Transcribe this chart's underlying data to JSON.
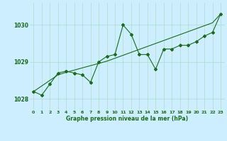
{
  "x": [
    0,
    1,
    2,
    3,
    4,
    5,
    6,
    7,
    8,
    9,
    10,
    11,
    12,
    13,
    14,
    15,
    16,
    17,
    18,
    19,
    20,
    21,
    22,
    23
  ],
  "pressure": [
    1028.2,
    1028.1,
    1028.4,
    1028.7,
    1028.75,
    1028.7,
    1028.65,
    1028.45,
    1029.0,
    1029.15,
    1029.2,
    1030.0,
    1029.75,
    1029.2,
    1029.2,
    1028.8,
    1029.35,
    1029.35,
    1029.45,
    1029.45,
    1029.55,
    1029.7,
    1029.8,
    1030.3
  ],
  "trend": [
    1028.2,
    1028.35,
    1028.5,
    1028.65,
    1028.72,
    1028.78,
    1028.84,
    1028.9,
    1028.96,
    1029.02,
    1029.1,
    1029.18,
    1029.26,
    1029.34,
    1029.42,
    1029.5,
    1029.58,
    1029.66,
    1029.74,
    1029.82,
    1029.9,
    1029.98,
    1030.06,
    1030.3
  ],
  "line_color": "#1a6b1a",
  "bg_color": "#cceeff",
  "grid_color": "#aaddcc",
  "text_color": "#1a6b1a",
  "ylabel_ticks": [
    1028,
    1029,
    1030
  ],
  "xlabel": "Graphe pression niveau de la mer (hPa)",
  "ylim": [
    1027.7,
    1030.6
  ],
  "xlim": [
    -0.5,
    23.5
  ]
}
